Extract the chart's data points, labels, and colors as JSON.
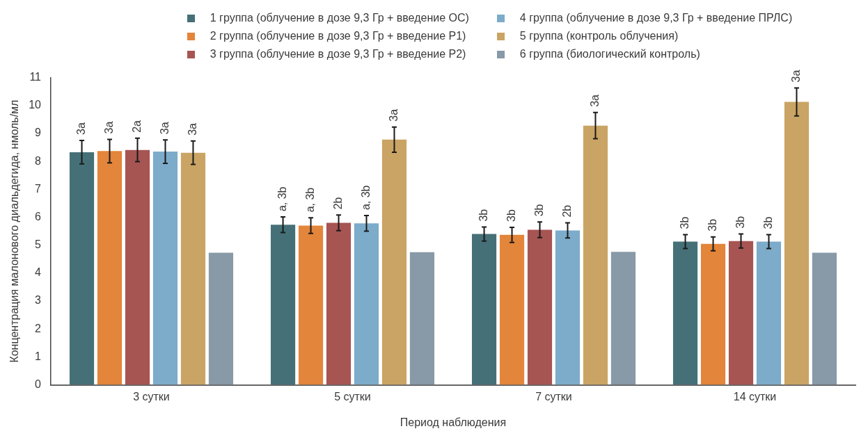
{
  "chart_data": {
    "type": "bar",
    "xlabel": "Период наблюдения",
    "ylabel": "Концентрация малонового диальдегида, нмоль/мл",
    "categories": [
      "3 сутки",
      "5 сутки",
      "7 сутки",
      "14 сутки"
    ],
    "ylim": [
      0,
      11
    ],
    "yticks": [
      0,
      1,
      2,
      3,
      4,
      5,
      6,
      7,
      8,
      9,
      10,
      11
    ],
    "grid": false,
    "legend": "top",
    "series": [
      {
        "name": "1 группа (облучение в дозе 9,3 Гр + введение ОС)",
        "color": "#467077",
        "values": [
          8.33,
          5.73,
          5.4,
          5.13
        ],
        "errors": [
          0.42,
          0.28,
          0.25,
          0.25
        ]
      },
      {
        "name": "2 группа (облучение в дозе 9,3 Гр + введение Р1)",
        "color": "#e3853a",
        "values": [
          8.37,
          5.7,
          5.37,
          5.05
        ],
        "errors": [
          0.42,
          0.28,
          0.27,
          0.25
        ]
      },
      {
        "name": "3 группа (облучение в дозе 9,3 Гр + введение Р2)",
        "color": "#a65553",
        "values": [
          8.41,
          5.8,
          5.55,
          5.15
        ],
        "errors": [
          0.42,
          0.28,
          0.28,
          0.25
        ]
      },
      {
        "name": "4 группа (облучение в дозе 9,3 Гр + введение ПРЛС)",
        "color": "#7dabca",
        "values": [
          8.35,
          5.78,
          5.53,
          5.13
        ],
        "errors": [
          0.42,
          0.28,
          0.27,
          0.25
        ]
      },
      {
        "name": "5 группа (контроль облучения)",
        "color": "#caa464",
        "values": [
          8.31,
          8.78,
          9.28,
          10.13
        ],
        "errors": [
          0.42,
          0.45,
          0.47,
          0.5
        ]
      },
      {
        "name": "6 группа (биологический контроль)",
        "color": "#8899a7",
        "values": [
          4.73,
          4.75,
          4.76,
          4.73
        ]
      }
    ],
    "annotations": [
      "3a",
      "3a",
      "2a",
      "3a",
      "3a",
      "a, 3b",
      "a, 3b",
      "2b",
      "a, 3b",
      "3a",
      "3b",
      "3b",
      "3b",
      "2b",
      "3a",
      "3b",
      "3b",
      "3b",
      "3b",
      "3a"
    ]
  }
}
